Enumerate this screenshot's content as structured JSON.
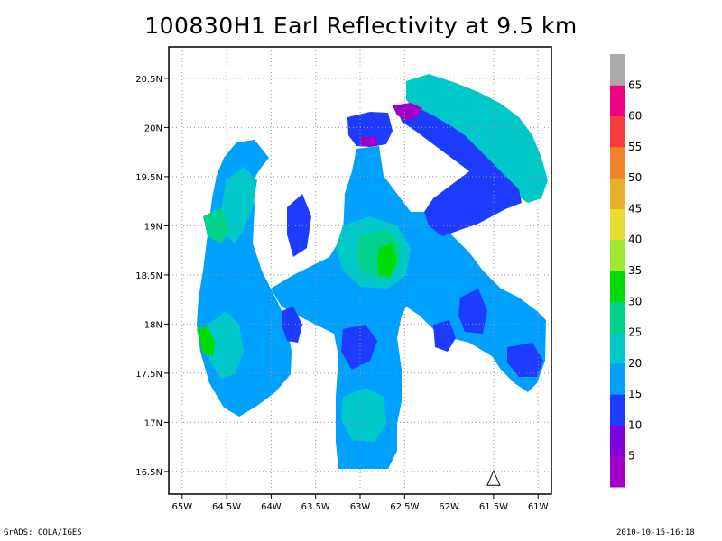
{
  "title": "100830H1 Earl Reflectivity at 9.5 km",
  "footer": {
    "left": "GrADS: COLA/IGES",
    "right": "2010-10-15-16:18"
  },
  "chart_data": {
    "type": "heatmap",
    "title": "100830H1 Earl Reflectivity at 9.5 km",
    "xlabel": "",
    "ylabel": "",
    "x_ticks": [
      "65W",
      "64.5W",
      "64W",
      "63.5W",
      "63W",
      "62.5W",
      "62W",
      "61.5W",
      "61W"
    ],
    "x_tick_values": [
      -65,
      -64.5,
      -64,
      -63.5,
      -63,
      -62.5,
      -62,
      -61.5,
      -61
    ],
    "y_ticks": [
      "16.5N",
      "17N",
      "17.5N",
      "18N",
      "18.5N",
      "19N",
      "19.5N",
      "20N",
      "20.5N"
    ],
    "y_tick_values": [
      16.5,
      17,
      17.5,
      18,
      18.5,
      19,
      19.5,
      20,
      20.5
    ],
    "xlim": [
      -65.15,
      -60.85
    ],
    "ylim": [
      16.27,
      20.82
    ],
    "grid": true,
    "colorbar": {
      "labels": [
        "5",
        "10",
        "15",
        "20",
        "25",
        "30",
        "35",
        "40",
        "45",
        "50",
        "55",
        "60",
        "65"
      ],
      "levels": [
        5,
        10,
        15,
        20,
        25,
        30,
        35,
        40,
        45,
        50,
        55,
        60,
        65
      ],
      "colors": [
        "#a000c8",
        "#8200dc",
        "#1e3cff",
        "#00a0ff",
        "#00c8c8",
        "#00d28c",
        "#00dc00",
        "#a0e632",
        "#e6dc32",
        "#e6af2d",
        "#f08228",
        "#fa3c3c",
        "#f00082",
        "#aaaaaa"
      ]
    },
    "fields": [
      {
        "level": "15-20",
        "value_range": [
          15,
          20
        ],
        "color": "#00a0ff"
      },
      {
        "level": "20-25",
        "value_range": [
          20,
          25
        ],
        "color": "#00c8c8"
      },
      {
        "level": "10-15",
        "value_range": [
          10,
          15
        ],
        "color": "#1e3cff"
      },
      {
        "level": "25-30",
        "value_range": [
          25,
          30
        ],
        "color": "#00d28c"
      },
      {
        "level": "30-35",
        "value_range": [
          30,
          35
        ],
        "color": "#00dc00"
      },
      {
        "level": "0-5",
        "value_range": [
          0,
          5
        ],
        "color": "#a000c8"
      }
    ],
    "annotations": [
      {
        "symbol": "triangle",
        "lon": -61.5,
        "lat": 16.36
      }
    ]
  }
}
